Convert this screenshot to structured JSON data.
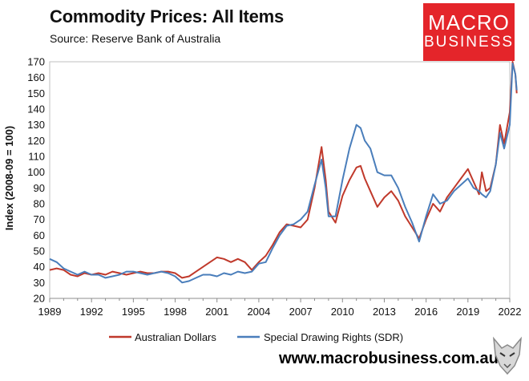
{
  "header": {
    "title": "Commodity Prices: All Items",
    "subtitle": "Source: Reserve Bank of Australia"
  },
  "logo": {
    "line1": "MACRO",
    "line2": "BUSINESS"
  },
  "footer": {
    "website": "www.macrobusiness.com.au"
  },
  "colors": {
    "aud": "#c0392b",
    "sdr": "#4a7ebb",
    "logo_bg": "#e4252a"
  },
  "chart_data": {
    "type": "line",
    "title": "Commodity Prices: All Items",
    "xlabel": "",
    "ylabel": "Index (2008-09 = 100)",
    "xlim": [
      1989,
      2022
    ],
    "ylim": [
      20,
      170
    ],
    "x_ticks": [
      "1989",
      "1992",
      "1995",
      "1998",
      "2001",
      "2004",
      "2007",
      "2010",
      "2013",
      "2016",
      "2019",
      "2022"
    ],
    "y_ticks": [
      "20",
      "30",
      "40",
      "50",
      "60",
      "70",
      "80",
      "90",
      "100",
      "110",
      "120",
      "130",
      "140",
      "150",
      "160",
      "170"
    ],
    "legend_position": "bottom",
    "series": [
      {
        "name": "Australian Dollars",
        "color": "#c0392b",
        "points": [
          [
            1989.0,
            38
          ],
          [
            1989.5,
            39
          ],
          [
            1990.0,
            38
          ],
          [
            1990.5,
            35
          ],
          [
            1991.0,
            34
          ],
          [
            1991.5,
            36
          ],
          [
            1992.0,
            35
          ],
          [
            1992.5,
            36
          ],
          [
            1993.0,
            35
          ],
          [
            1993.5,
            37
          ],
          [
            1994.0,
            36
          ],
          [
            1994.5,
            35
          ],
          [
            1995.0,
            36
          ],
          [
            1995.5,
            37
          ],
          [
            1996.0,
            36
          ],
          [
            1996.5,
            36
          ],
          [
            1997.0,
            37
          ],
          [
            1997.5,
            37
          ],
          [
            1998.0,
            36
          ],
          [
            1998.5,
            33
          ],
          [
            1999.0,
            34
          ],
          [
            1999.5,
            37
          ],
          [
            2000.0,
            40
          ],
          [
            2000.5,
            43
          ],
          [
            2001.0,
            46
          ],
          [
            2001.5,
            45
          ],
          [
            2002.0,
            43
          ],
          [
            2002.5,
            45
          ],
          [
            2003.0,
            43
          ],
          [
            2003.5,
            38
          ],
          [
            2004.0,
            43
          ],
          [
            2004.5,
            47
          ],
          [
            2005.0,
            54
          ],
          [
            2005.5,
            62
          ],
          [
            2006.0,
            67
          ],
          [
            2006.5,
            66
          ],
          [
            2007.0,
            65
          ],
          [
            2007.5,
            70
          ],
          [
            2008.0,
            90
          ],
          [
            2008.5,
            116
          ],
          [
            2008.8,
            95
          ],
          [
            2009.0,
            75
          ],
          [
            2009.5,
            68
          ],
          [
            2010.0,
            85
          ],
          [
            2010.5,
            95
          ],
          [
            2011.0,
            103
          ],
          [
            2011.3,
            104
          ],
          [
            2011.6,
            96
          ],
          [
            2012.0,
            88
          ],
          [
            2012.5,
            78
          ],
          [
            2013.0,
            84
          ],
          [
            2013.5,
            88
          ],
          [
            2014.0,
            82
          ],
          [
            2014.5,
            72
          ],
          [
            2015.0,
            65
          ],
          [
            2015.5,
            58
          ],
          [
            2016.0,
            70
          ],
          [
            2016.5,
            80
          ],
          [
            2017.0,
            75
          ],
          [
            2017.5,
            84
          ],
          [
            2018.0,
            90
          ],
          [
            2018.5,
            96
          ],
          [
            2019.0,
            102
          ],
          [
            2019.4,
            94
          ],
          [
            2019.8,
            86
          ],
          [
            2020.0,
            100
          ],
          [
            2020.3,
            88
          ],
          [
            2020.6,
            90
          ],
          [
            2021.0,
            105
          ],
          [
            2021.3,
            130
          ],
          [
            2021.6,
            118
          ],
          [
            2022.0,
            138
          ],
          [
            2022.2,
            170
          ],
          [
            2022.4,
            162
          ],
          [
            2022.5,
            150
          ]
        ]
      },
      {
        "name": "Special Drawing Rights (SDR)",
        "color": "#4a7ebb",
        "points": [
          [
            1989.0,
            45
          ],
          [
            1989.5,
            43
          ],
          [
            1990.0,
            39
          ],
          [
            1990.5,
            37
          ],
          [
            1991.0,
            35
          ],
          [
            1991.5,
            37
          ],
          [
            1992.0,
            35
          ],
          [
            1992.5,
            35
          ],
          [
            1993.0,
            33
          ],
          [
            1993.5,
            34
          ],
          [
            1994.0,
            35
          ],
          [
            1994.5,
            37
          ],
          [
            1995.0,
            37
          ],
          [
            1995.5,
            36
          ],
          [
            1996.0,
            35
          ],
          [
            1996.5,
            36
          ],
          [
            1997.0,
            37
          ],
          [
            1997.5,
            36
          ],
          [
            1998.0,
            34
          ],
          [
            1998.5,
            30
          ],
          [
            1999.0,
            31
          ],
          [
            1999.5,
            33
          ],
          [
            2000.0,
            35
          ],
          [
            2000.5,
            35
          ],
          [
            2001.0,
            34
          ],
          [
            2001.5,
            36
          ],
          [
            2002.0,
            35
          ],
          [
            2002.5,
            37
          ],
          [
            2003.0,
            36
          ],
          [
            2003.5,
            37
          ],
          [
            2004.0,
            42
          ],
          [
            2004.5,
            43
          ],
          [
            2005.0,
            52
          ],
          [
            2005.5,
            60
          ],
          [
            2006.0,
            66
          ],
          [
            2006.5,
            67
          ],
          [
            2007.0,
            70
          ],
          [
            2007.5,
            75
          ],
          [
            2008.0,
            92
          ],
          [
            2008.5,
            108
          ],
          [
            2008.8,
            90
          ],
          [
            2009.0,
            72
          ],
          [
            2009.5,
            72
          ],
          [
            2010.0,
            95
          ],
          [
            2010.5,
            115
          ],
          [
            2011.0,
            130
          ],
          [
            2011.3,
            128
          ],
          [
            2011.6,
            120
          ],
          [
            2012.0,
            115
          ],
          [
            2012.5,
            100
          ],
          [
            2013.0,
            98
          ],
          [
            2013.5,
            98
          ],
          [
            2014.0,
            90
          ],
          [
            2014.5,
            78
          ],
          [
            2015.0,
            68
          ],
          [
            2015.5,
            56
          ],
          [
            2016.0,
            72
          ],
          [
            2016.5,
            86
          ],
          [
            2017.0,
            80
          ],
          [
            2017.5,
            82
          ],
          [
            2018.0,
            88
          ],
          [
            2018.5,
            92
          ],
          [
            2019.0,
            96
          ],
          [
            2019.4,
            90
          ],
          [
            2019.8,
            88
          ],
          [
            2020.0,
            86
          ],
          [
            2020.3,
            84
          ],
          [
            2020.6,
            88
          ],
          [
            2021.0,
            105
          ],
          [
            2021.3,
            125
          ],
          [
            2021.6,
            115
          ],
          [
            2022.0,
            130
          ],
          [
            2022.2,
            169
          ],
          [
            2022.4,
            162
          ],
          [
            2022.5,
            152
          ]
        ]
      }
    ]
  }
}
